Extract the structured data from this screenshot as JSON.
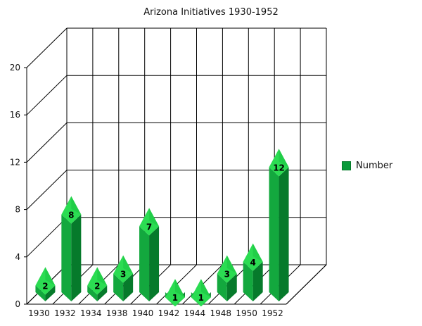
{
  "chart_data": {
    "type": "bar",
    "title": "Arizona Initiatives 1930-1952",
    "categories": [
      "1930",
      "1932",
      "1934",
      "1938",
      "1940",
      "1942",
      "1944",
      "1948",
      "1950",
      "1952"
    ],
    "series": [
      {
        "name": "Number",
        "values": [
          2,
          8,
          2,
          3,
          7,
          1,
          1,
          3,
          4,
          12
        ]
      }
    ],
    "ylim": [
      0,
      20
    ],
    "yticks": [
      0,
      4,
      8,
      12,
      16,
      20
    ],
    "grid": true,
    "legend_position": "right",
    "colors": {
      "bar_front": "#13a83e",
      "bar_side": "#067a2b",
      "bar_top": "#2bdc52",
      "bar_top_dark": "#19c240"
    }
  }
}
